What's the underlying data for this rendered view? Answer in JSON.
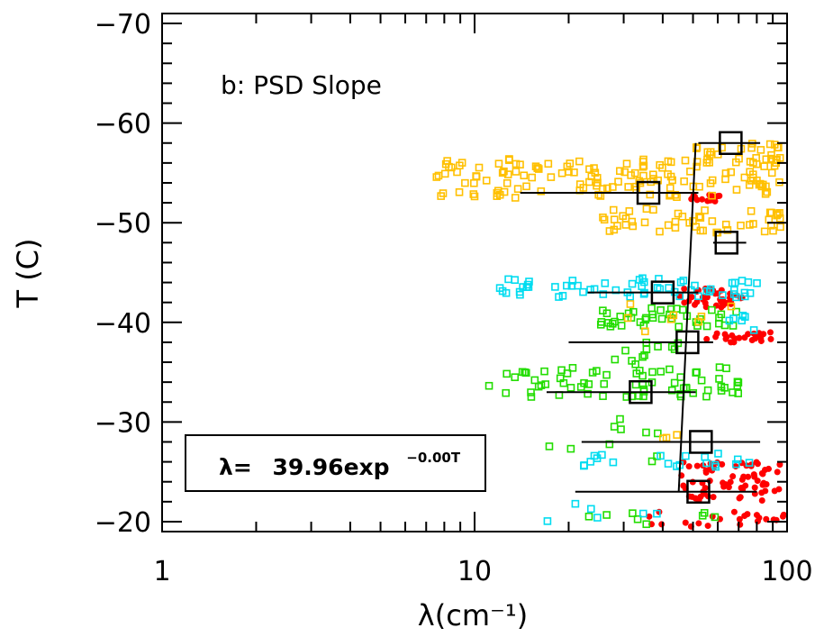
{
  "chart_data": {
    "type": "scatter",
    "title": "",
    "panel_label": "b: PSD Slope",
    "xlabel": "λ(cm⁻¹)",
    "ylabel": "T (C)",
    "x_scale": "log",
    "xlim": [
      1,
      100
    ],
    "ylim": [
      -19,
      -71
    ],
    "x_tick_labels": [
      "1",
      "10",
      "100"
    ],
    "x_tick_values": [
      1,
      10,
      100
    ],
    "y_tick_labels": [
      "−20",
      "−30",
      "−40",
      "−50",
      "−60",
      "−70"
    ],
    "y_tick_values": [
      -20,
      -30,
      -40,
      -50,
      -60,
      -70
    ],
    "fit_annotation": {
      "prefix": "λ=",
      "value": "39.96exp",
      "exponent": "−0.00T"
    },
    "colors": {
      "orange": "#ffc000",
      "cyan": "#00dcf0",
      "green": "#22dd00",
      "red": "#ff0000",
      "black": "#000000"
    },
    "mean_points": [
      {
        "T": -58,
        "lambda": 66,
        "range": [
          52,
          82
        ]
      },
      {
        "T": -53,
        "lambda": 36,
        "range": [
          14,
          52
        ]
      },
      {
        "T": -48,
        "lambda": 64,
        "range": [
          58,
          74
        ]
      },
      {
        "T": -43,
        "lambda": 40,
        "range": [
          23,
          52
        ]
      },
      {
        "T": -38,
        "lambda": 48,
        "range": [
          20,
          58
        ]
      },
      {
        "T": -33,
        "lambda": 34,
        "range": [
          17,
          51
        ]
      },
      {
        "T": -28,
        "lambda": 53,
        "range": [
          22,
          82
        ]
      },
      {
        "T": -23,
        "lambda": 52,
        "range": [
          21,
          80
        ]
      }
    ],
    "fit_line": {
      "x": [
        45,
        51
      ],
      "y": [
        -23,
        -58
      ]
    },
    "scatter_groups": [
      {
        "color": "orange",
        "marker": "open-square",
        "clusters": [
          {
            "xr": [
              7.5,
              100
            ],
            "yr": [
              -52.5,
              -56.5
            ],
            "n": 140
          },
          {
            "xr": [
              25,
              100
            ],
            "yr": [
              -49,
              -51.5
            ],
            "n": 50
          },
          {
            "xr": [
              50,
              100
            ],
            "yr": [
              -56,
              -58
            ],
            "n": 30
          },
          {
            "xr": [
              30,
              70
            ],
            "yr": [
              -39,
              -42
            ],
            "n": 8
          },
          {
            "xr": [
              40,
              50
            ],
            "yr": [
              -28,
              -30
            ],
            "n": 3
          }
        ]
      },
      {
        "color": "cyan",
        "marker": "open-square",
        "clusters": [
          {
            "xr": [
              12,
              85
            ],
            "yr": [
              -42.5,
              -44.5
            ],
            "n": 60
          },
          {
            "xr": [
              65,
              80
            ],
            "yr": [
              -39,
              -41
            ],
            "n": 6
          },
          {
            "xr": [
              22,
              85
            ],
            "yr": [
              -25.5,
              -27
            ],
            "n": 20
          },
          {
            "xr": [
              16,
              40
            ],
            "yr": [
              -20,
              -22
            ],
            "n": 6
          }
        ]
      },
      {
        "color": "green",
        "marker": "open-square",
        "clusters": [
          {
            "xr": [
              25,
              75
            ],
            "yr": [
              -39.5,
              -41.5
            ],
            "n": 40
          },
          {
            "xr": [
              11,
              75
            ],
            "yr": [
              -32.5,
              -35.5
            ],
            "n": 70
          },
          {
            "xr": [
              28,
              45
            ],
            "yr": [
              -35.5,
              -38
            ],
            "n": 12
          },
          {
            "xr": [
              14,
              40
            ],
            "yr": [
              -26,
              -30.5
            ],
            "n": 10
          },
          {
            "xr": [
              20,
              60
            ],
            "yr": [
              -19.5,
              -21
            ],
            "n": 8
          }
        ]
      },
      {
        "color": "red",
        "marker": "filled-dot",
        "clusters": [
          {
            "xr": [
              48,
              62
            ],
            "yr": [
              -52,
              -52.8
            ],
            "n": 15
          },
          {
            "xr": [
              45,
              72
            ],
            "yr": [
              -41.5,
              -43.5
            ],
            "n": 40
          },
          {
            "xr": [
              55,
              100
            ],
            "yr": [
              -38,
              -39
            ],
            "n": 25
          },
          {
            "xr": [
              45,
              100
            ],
            "yr": [
              -22,
              -26
            ],
            "n": 70
          },
          {
            "xr": [
              35,
              100
            ],
            "yr": [
              -19.5,
              -21
            ],
            "n": 25
          }
        ]
      }
    ]
  }
}
